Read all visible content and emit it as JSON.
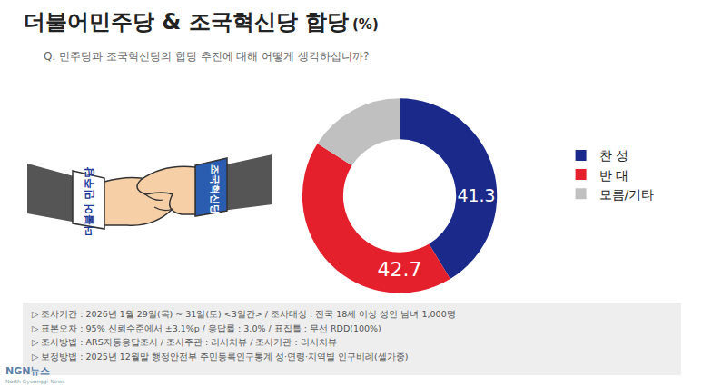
{
  "chart_data": {
    "type": "pie",
    "title": "더불어민주당 & 조국혁신당 합당",
    "title_unit": "(%)",
    "subtitle": "Q. 민주당과 조국혁신당의 합당 추진에 대해 어떻게 생각하십니까?",
    "categories": [
      "찬 성",
      "반 대",
      "모름/기타"
    ],
    "values": [
      41.3,
      42.7,
      16.0
    ],
    "value_labels": [
      "41.3",
      "42.7",
      null
    ],
    "colors": [
      "#1b2a8a",
      "#e3202b",
      "#c0c0c0"
    ],
    "data_labels": true,
    "legend": "right"
  },
  "illustration": {
    "left_sleeve": "더불어 민주당",
    "right_sleeve": "조국혁신당"
  },
  "notes": [
    "▷ 조사기간 : 2026년 1월 29일(목) ~ 31일(토) <3일간> / 조사대상 : 전국 18세 이상 성인 남녀 1,000명",
    "▷ 표본오차 : 95% 신뢰수준에서 ±3.1%p / 응답률 : 3.0% / 표집틀 : 무선 RDD(100%)",
    "▷ 조사방법 : ARS자동응답조사 / 조사주관 : 리서치뷰 / 조사기관 : 리서치뷰",
    "▷ 보정방법 : 2025년 12월말 행정안전부 주민등록인구통계 성·연령·지역별 인구비례(셀가중)"
  ],
  "logo": {
    "name": "NGN뉴스",
    "tagline": "North Gyeonggi News"
  }
}
